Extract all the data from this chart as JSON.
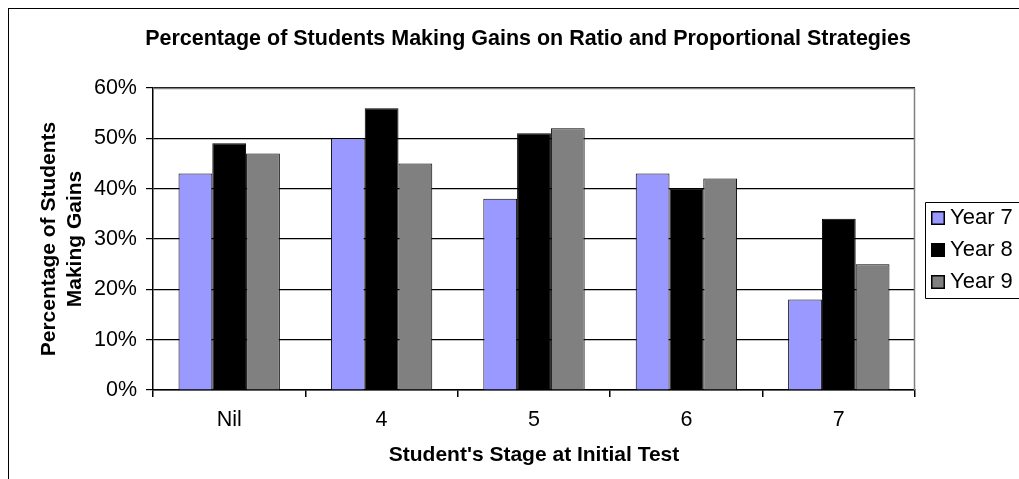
{
  "chart_data": {
    "type": "bar",
    "title": "Percentage of Students Making Gains on Ratio and Proportional Strategies",
    "xlabel": "Student's Stage at Initial Test",
    "ylabel": "Percentage of Students Making Gains",
    "categories": [
      "Nil",
      "4",
      "5",
      "6",
      "7"
    ],
    "series": [
      {
        "name": "Year 7",
        "color": "#9999ff",
        "values": [
          43,
          50,
          38,
          43,
          18
        ]
      },
      {
        "name": "Year 8",
        "color": "#000000",
        "values": [
          49,
          56,
          51,
          40,
          34
        ]
      },
      {
        "name": "Year 9",
        "color": "#808080",
        "values": [
          47,
          45,
          52,
          42,
          25
        ]
      }
    ],
    "ylim": [
      0,
      60
    ],
    "yticks": [
      {
        "value": 0,
        "label": "0%"
      },
      {
        "value": 10,
        "label": "10%"
      },
      {
        "value": 20,
        "label": "20%"
      },
      {
        "value": 30,
        "label": "30%"
      },
      {
        "value": 40,
        "label": "40%"
      },
      {
        "value": 50,
        "label": "50%"
      },
      {
        "value": 60,
        "label": "60%"
      }
    ],
    "grid": "y",
    "legend": "right"
  }
}
